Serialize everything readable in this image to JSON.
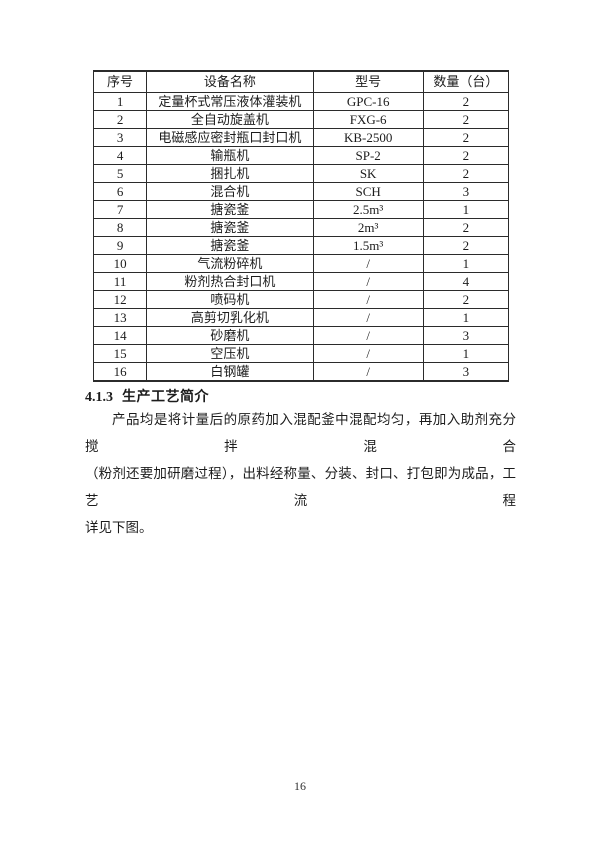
{
  "page": {
    "background": "#ffffff",
    "number": "16"
  },
  "table": {
    "headers": [
      "序号",
      "设备名称",
      "型号",
      "数量（台）"
    ],
    "rows": [
      [
        "1",
        "定量杯式常压液体灌装机",
        "GPC-16",
        "2"
      ],
      [
        "2",
        "全自动旋盖机",
        "FXG-6",
        "2"
      ],
      [
        "3",
        "电磁感应密封瓶口封口机",
        "KB-2500",
        "2"
      ],
      [
        "4",
        "输瓶机",
        "SP-2",
        "2"
      ],
      [
        "5",
        "捆扎机",
        "SK",
        "2"
      ],
      [
        "6",
        "混合机",
        "SCH",
        "3"
      ],
      [
        "7",
        "搪瓷釜",
        "2.5m³",
        "1"
      ],
      [
        "8",
        "搪瓷釜",
        "2m³",
        "2"
      ],
      [
        "9",
        "搪瓷釜",
        "1.5m³",
        "2"
      ],
      [
        "10",
        "气流粉碎机",
        "/",
        "1"
      ],
      [
        "11",
        "粉剂热合封口机",
        "/",
        "4"
      ],
      [
        "12",
        "喷码机",
        "/",
        "2"
      ],
      [
        "13",
        "高剪切乳化机",
        "/",
        "1"
      ],
      [
        "14",
        "砂磨机",
        "/",
        "3"
      ],
      [
        "15",
        "空压机",
        "/",
        "1"
      ],
      [
        "16",
        "白钢罐",
        "/",
        "3"
      ]
    ]
  },
  "section": {
    "number": "4.1.3",
    "title": "生产工艺简介"
  },
  "paragraph": {
    "lines": [
      "产品均是将计量后的原药加入混配釜中混配均匀，再加入助剂充分搅拌混合",
      "（粉剂还要加研磨过程），出料经称量、分装、封口、打包即为成品，工艺流程",
      "详见下图。"
    ]
  }
}
